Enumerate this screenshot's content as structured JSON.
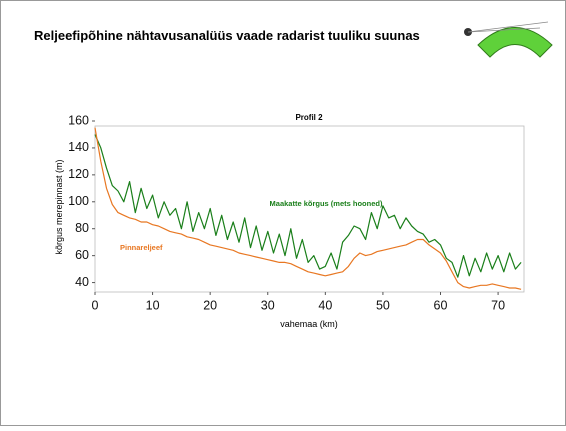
{
  "slide_title": "Reljeefipõhine nähtavusanalüüs vaade radarist tuuliku suunas",
  "chart_data": {
    "type": "line",
    "title": "Profil 2",
    "xlabel": "vahemaa (km)",
    "ylabel": "kõrgus merepinnast (m)",
    "annotations": [
      "Maakatte kõrgus (mets hooned)",
      "Pinnareljeef"
    ],
    "x": [
      0,
      1,
      2,
      3,
      4,
      5,
      6,
      7,
      8,
      9,
      10,
      11,
      12,
      13,
      14,
      15,
      16,
      17,
      18,
      19,
      20,
      21,
      22,
      23,
      24,
      25,
      26,
      27,
      28,
      29,
      30,
      31,
      32,
      33,
      34,
      35,
      36,
      37,
      38,
      39,
      40,
      41,
      42,
      43,
      44,
      45,
      46,
      47,
      48,
      49,
      50,
      51,
      52,
      53,
      54,
      55,
      56,
      57,
      58,
      59,
      60,
      61,
      62,
      63,
      64,
      65,
      66,
      67,
      68,
      69,
      70,
      71,
      72,
      73,
      74
    ],
    "series": [
      {
        "color": "#1a7f1a",
        "values": [
          150,
          140,
          125,
          112,
          108,
          100,
          115,
          92,
          110,
          95,
          105,
          88,
          100,
          90,
          95,
          80,
          100,
          78,
          92,
          80,
          95,
          75,
          90,
          72,
          85,
          70,
          88,
          66,
          82,
          64,
          78,
          62,
          76,
          60,
          80,
          58,
          72,
          55,
          60,
          50,
          52,
          62,
          50,
          70,
          75,
          82,
          80,
          72,
          92,
          80,
          97,
          88,
          90,
          80,
          88,
          82,
          78,
          76,
          70,
          72,
          68,
          58,
          55,
          44,
          60,
          45,
          58,
          48,
          62,
          50,
          60,
          48,
          62,
          50,
          55
        ]
      },
      {
        "color": "#e87722",
        "values": [
          155,
          130,
          110,
          98,
          92,
          90,
          88,
          87,
          85,
          85,
          83,
          82,
          80,
          78,
          77,
          76,
          74,
          73,
          72,
          70,
          68,
          67,
          66,
          65,
          64,
          62,
          61,
          60,
          59,
          58,
          57,
          56,
          55,
          55,
          54,
          52,
          50,
          48,
          47,
          46,
          45,
          46,
          47,
          48,
          52,
          58,
          62,
          60,
          61,
          63,
          64,
          65,
          66,
          67,
          68,
          70,
          72,
          72,
          68,
          65,
          62,
          56,
          48,
          40,
          37,
          36,
          37,
          38,
          38,
          39,
          38,
          37,
          36,
          36,
          35
        ]
      }
    ],
    "xlim": [
      0,
      74.5
    ],
    "ylim": [
      33,
      160
    ],
    "xticks": [
      0,
      10,
      20,
      30,
      40,
      50,
      60,
      70
    ],
    "yticks": [
      40,
      60,
      80,
      100,
      120,
      140,
      160
    ]
  }
}
